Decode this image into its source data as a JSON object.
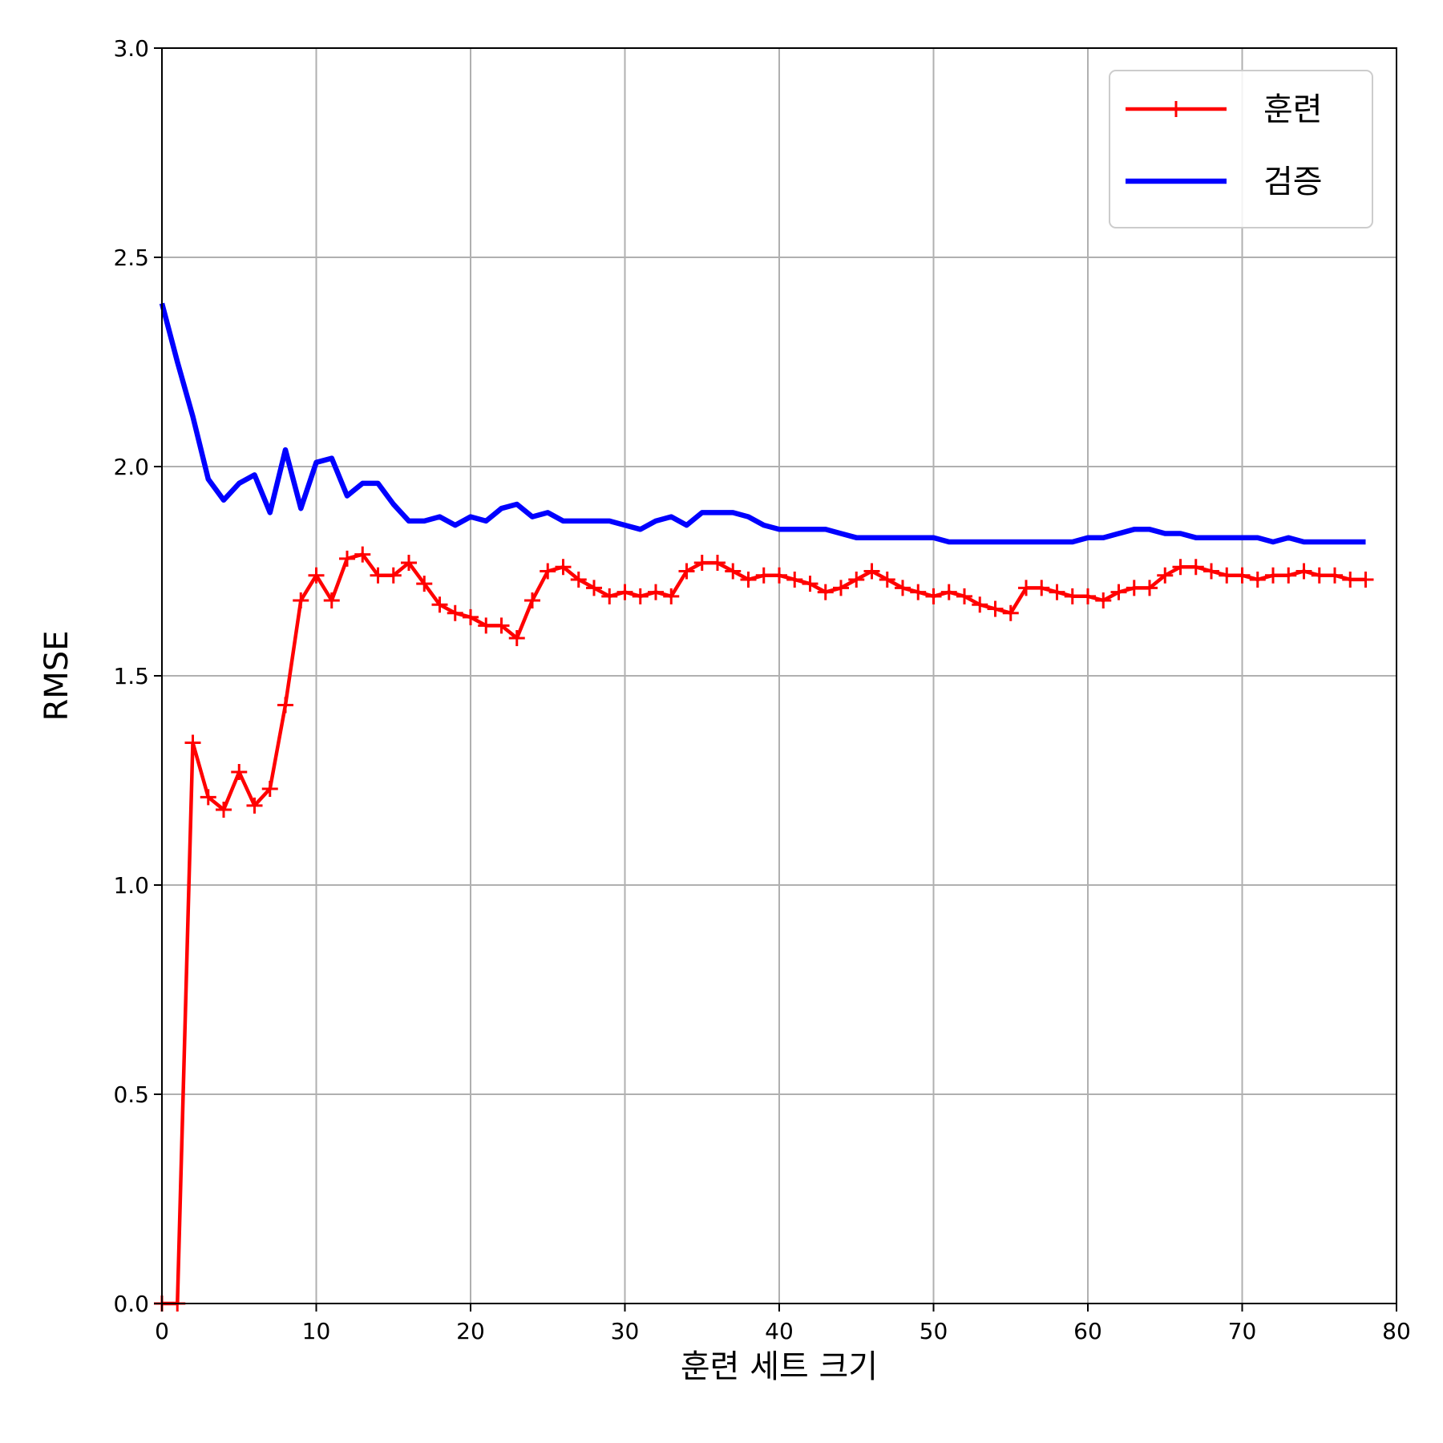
{
  "chart_data": {
    "type": "line",
    "title": "",
    "xlabel": "훈련 세트 크기",
    "ylabel": "RMSE",
    "xlim": [
      0,
      80
    ],
    "ylim": [
      0,
      3
    ],
    "x_ticks": [
      0,
      10,
      20,
      30,
      40,
      50,
      60,
      70,
      80
    ],
    "x_tick_labels": [
      "0",
      "10",
      "20",
      "30",
      "40",
      "50",
      "60",
      "70",
      "80"
    ],
    "y_ticks": [
      0,
      0.5,
      1,
      1.5,
      2,
      2.5,
      3
    ],
    "y_tick_labels": [
      "0.0",
      "0.5",
      "1.0",
      "1.5",
      "2.0",
      "2.5",
      "3.0"
    ],
    "grid": true,
    "legend_position": "top-right",
    "series": [
      {
        "name": "훈련",
        "color": "#ff0000",
        "marker": "plus",
        "x": [
          0,
          1,
          2,
          3,
          4,
          5,
          6,
          7,
          8,
          9,
          10,
          11,
          12,
          13,
          14,
          15,
          16,
          17,
          18,
          19,
          20,
          21,
          22,
          23,
          24,
          25,
          26,
          27,
          28,
          29,
          30,
          31,
          32,
          33,
          34,
          35,
          36,
          37,
          38,
          39,
          40,
          41,
          42,
          43,
          44,
          45,
          46,
          47,
          48,
          49,
          50,
          51,
          52,
          53,
          54,
          55,
          56,
          57,
          58,
          59,
          60,
          61,
          62,
          63,
          64,
          65,
          66,
          67,
          68,
          69,
          70,
          71,
          72,
          73,
          74,
          75,
          76,
          77,
          78
        ],
        "y": [
          0.0,
          0.0,
          1.34,
          1.21,
          1.18,
          1.27,
          1.19,
          1.23,
          1.43,
          1.68,
          1.74,
          1.68,
          1.78,
          1.79,
          1.74,
          1.74,
          1.77,
          1.72,
          1.67,
          1.65,
          1.64,
          1.62,
          1.62,
          1.59,
          1.68,
          1.75,
          1.76,
          1.73,
          1.71,
          1.69,
          1.7,
          1.69,
          1.7,
          1.69,
          1.75,
          1.77,
          1.77,
          1.75,
          1.73,
          1.74,
          1.74,
          1.73,
          1.72,
          1.7,
          1.71,
          1.73,
          1.75,
          1.73,
          1.71,
          1.7,
          1.69,
          1.7,
          1.69,
          1.67,
          1.66,
          1.65,
          1.71,
          1.71,
          1.7,
          1.69,
          1.69,
          1.68,
          1.7,
          1.71,
          1.71,
          1.74,
          1.76,
          1.76,
          1.75,
          1.74,
          1.74,
          1.73,
          1.74,
          1.74,
          1.75,
          1.74,
          1.74,
          1.73,
          1.73
        ]
      },
      {
        "name": "검증",
        "color": "#0000ff",
        "marker": "none",
        "x": [
          0,
          1,
          2,
          3,
          4,
          5,
          6,
          7,
          8,
          9,
          10,
          11,
          12,
          13,
          14,
          15,
          16,
          17,
          18,
          19,
          20,
          21,
          22,
          23,
          24,
          25,
          26,
          27,
          28,
          29,
          30,
          31,
          32,
          33,
          34,
          35,
          36,
          37,
          38,
          39,
          40,
          41,
          42,
          43,
          44,
          45,
          46,
          47,
          48,
          49,
          50,
          51,
          52,
          53,
          54,
          55,
          56,
          57,
          58,
          59,
          60,
          61,
          62,
          63,
          64,
          65,
          66,
          67,
          68,
          69,
          70,
          71,
          72,
          73,
          74,
          75,
          76,
          77,
          78
        ],
        "y": [
          2.39,
          2.25,
          2.12,
          1.97,
          1.92,
          1.96,
          1.98,
          1.89,
          2.04,
          1.9,
          2.01,
          2.02,
          1.93,
          1.96,
          1.96,
          1.91,
          1.87,
          1.87,
          1.88,
          1.86,
          1.88,
          1.87,
          1.9,
          1.91,
          1.88,
          1.89,
          1.87,
          1.87,
          1.87,
          1.87,
          1.86,
          1.85,
          1.87,
          1.88,
          1.86,
          1.89,
          1.89,
          1.89,
          1.88,
          1.86,
          1.85,
          1.85,
          1.85,
          1.85,
          1.84,
          1.83,
          1.83,
          1.83,
          1.83,
          1.83,
          1.83,
          1.82,
          1.82,
          1.82,
          1.82,
          1.82,
          1.82,
          1.82,
          1.82,
          1.82,
          1.83,
          1.83,
          1.84,
          1.85,
          1.85,
          1.84,
          1.84,
          1.83,
          1.83,
          1.83,
          1.83,
          1.83,
          1.82,
          1.83,
          1.82,
          1.82,
          1.82,
          1.82,
          1.82
        ]
      }
    ]
  }
}
